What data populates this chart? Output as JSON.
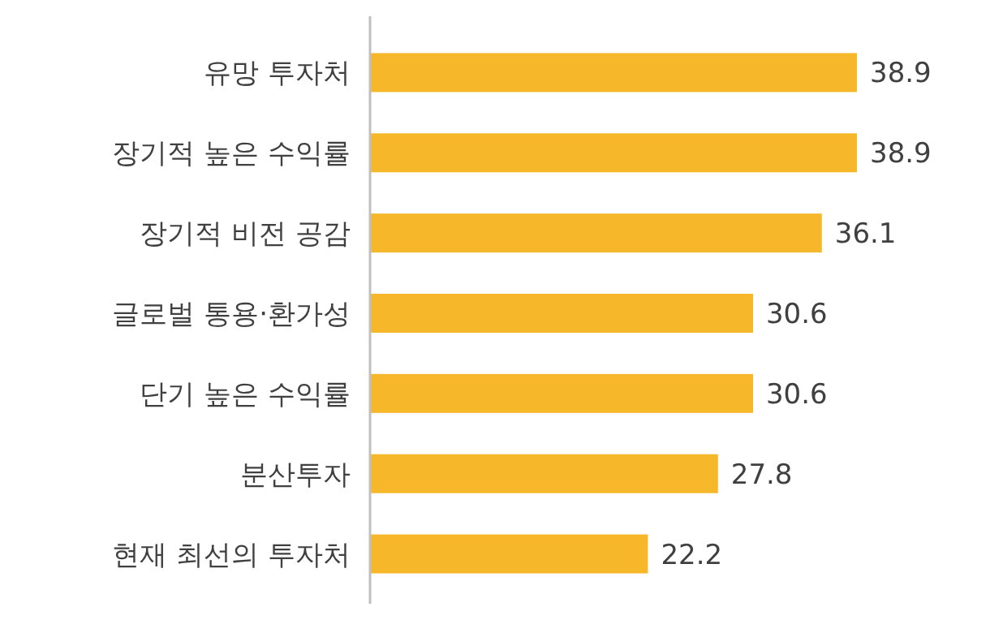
{
  "chart_data": {
    "type": "bar",
    "orientation": "horizontal",
    "categories": [
      "유망 투자처",
      "장기적 높은 수익률",
      "장기적 비전 공감",
      "글로벌 통용·환가성",
      "단기 높은 수익률",
      "분산투자",
      "현재 최선의 투자처"
    ],
    "values": [
      38.9,
      38.9,
      36.1,
      30.6,
      30.6,
      27.8,
      22.2
    ],
    "color": "#f6b82a",
    "data_labels": true
  }
}
